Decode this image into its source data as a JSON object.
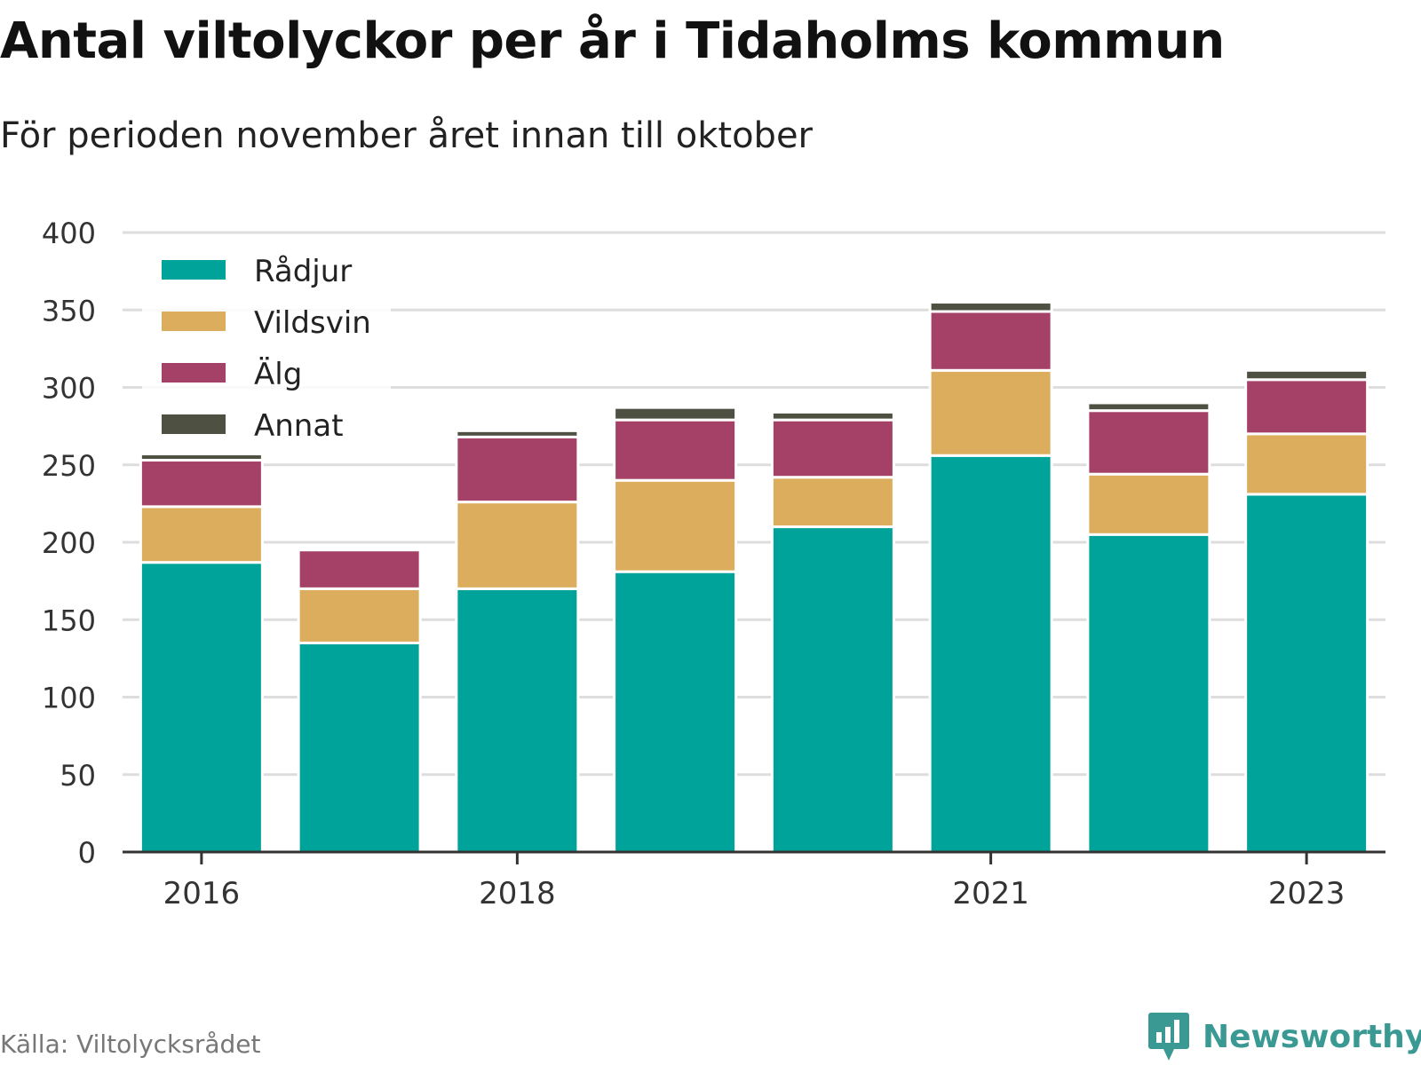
{
  "header": {
    "title": "Antal viltolyckor per år i Tidaholms kommun",
    "subtitle": "För perioden november året innan till oktober"
  },
  "footer": {
    "source": "Källa: Viltolycksrådet",
    "brand": "Newsworthy"
  },
  "colors": {
    "Rådjur": "#00a39a",
    "Vildsvin": "#dbad5c",
    "Älg": "#a54166",
    "Annat": "#4e5042",
    "grid": "#dddddd",
    "axis": "#333333",
    "brand": "#3a9a93"
  },
  "chart_data": {
    "type": "bar",
    "stacked": true,
    "categories": [
      "2016",
      "2017",
      "2018",
      "2019",
      "2020",
      "2021",
      "2022",
      "2023"
    ],
    "x_tick_labels": [
      "2016",
      "2018",
      "2021",
      "2023"
    ],
    "series": [
      {
        "name": "Rådjur",
        "values": [
          187,
          135,
          170,
          181,
          210,
          256,
          205,
          231
        ]
      },
      {
        "name": "Vildsvin",
        "values": [
          36,
          35,
          56,
          59,
          32,
          55,
          39,
          39
        ]
      },
      {
        "name": "Älg",
        "values": [
          30,
          25,
          42,
          39,
          37,
          38,
          41,
          35
        ]
      },
      {
        "name": "Annat",
        "values": [
          4,
          0,
          4,
          8,
          5,
          6,
          5,
          6
        ]
      }
    ],
    "ylim": [
      0,
      400
    ],
    "y_ticks": [
      0,
      50,
      100,
      150,
      200,
      250,
      300,
      350,
      400
    ],
    "grid": true,
    "legend_position": "top-left"
  }
}
